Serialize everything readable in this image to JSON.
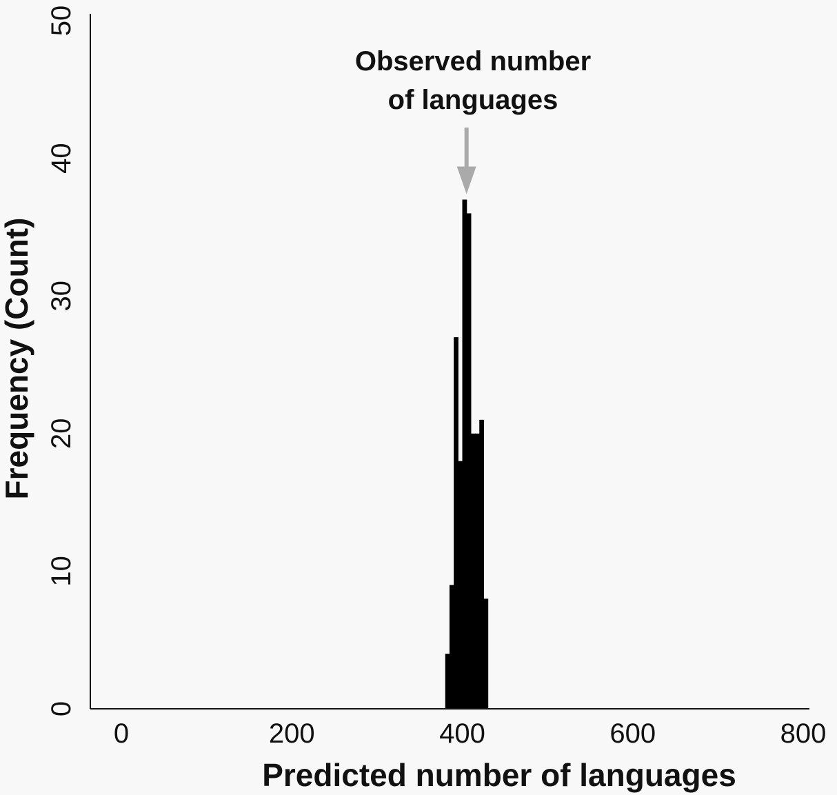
{
  "chart_data": {
    "type": "bar",
    "title": "",
    "xlabel": "Predicted number of languages",
    "ylabel": "Frequency (Count)",
    "xlim": [
      0,
      800
    ],
    "ylim": [
      0,
      50
    ],
    "xticks": [
      "0",
      "200",
      "400",
      "600",
      "800"
    ],
    "yticks": [
      "0",
      "10",
      "20",
      "30",
      "40",
      "50"
    ],
    "bin_width": 5,
    "bins": [
      {
        "x0": 380,
        "x1": 385,
        "count": 4
      },
      {
        "x0": 385,
        "x1": 390,
        "count": 9
      },
      {
        "x0": 390,
        "x1": 395,
        "count": 27
      },
      {
        "x0": 395,
        "x1": 400,
        "count": 18
      },
      {
        "x0": 400,
        "x1": 405,
        "count": 37
      },
      {
        "x0": 405,
        "x1": 410,
        "count": 36
      },
      {
        "x0": 410,
        "x1": 415,
        "count": 20
      },
      {
        "x0": 415,
        "x1": 420,
        "count": 20
      },
      {
        "x0": 420,
        "x1": 425,
        "count": 21
      },
      {
        "x0": 425,
        "x1": 430,
        "count": 8
      }
    ],
    "bar_color": "#000000",
    "grid": false,
    "annotation": {
      "lines": [
        "Observed number",
        "of languages"
      ],
      "target_x": 405,
      "target_y": 37,
      "arrow_color": "#aaaaaa"
    }
  }
}
